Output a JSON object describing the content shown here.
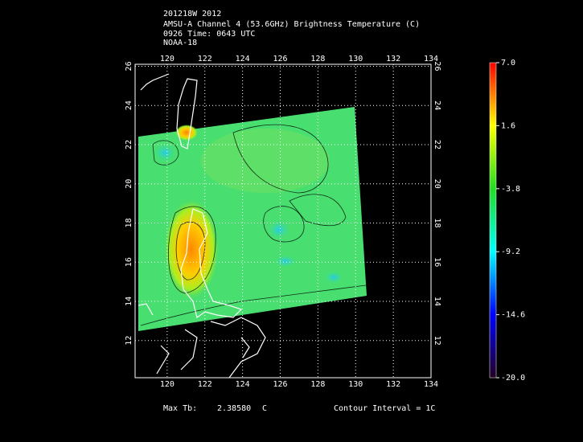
{
  "header": {
    "lines": [
      "201218W 2012",
      "AMSU-A Channel 4 (53.6GHz) Brightness Temperature (C)",
      "0926 Time: 0643 UTC",
      "NOAA-18"
    ]
  },
  "map": {
    "xlim": [
      118.3,
      134
    ],
    "ylim": [
      10.1,
      26.1
    ],
    "xticks": [
      120,
      122,
      124,
      126,
      128,
      130,
      132,
      134
    ],
    "yticks": [
      12,
      14,
      16,
      18,
      20,
      22,
      24,
      26
    ]
  },
  "colorbar": {
    "lim": [
      -20,
      7
    ],
    "ticks": [
      {
        "value": 7,
        "label": "7.0"
      },
      {
        "value": 1.6,
        "label": "1.6"
      },
      {
        "value": -3.8,
        "label": "-3.8"
      },
      {
        "value": -9.2,
        "label": "-9.2"
      },
      {
        "value": -14.6,
        "label": "-14.6"
      },
      {
        "value": -20,
        "label": "-20.0"
      }
    ]
  },
  "footer": {
    "max_label": "Max Tb:",
    "max_value": "2.38580",
    "unit": "C",
    "contour": "Contour Interval = 1C"
  }
}
